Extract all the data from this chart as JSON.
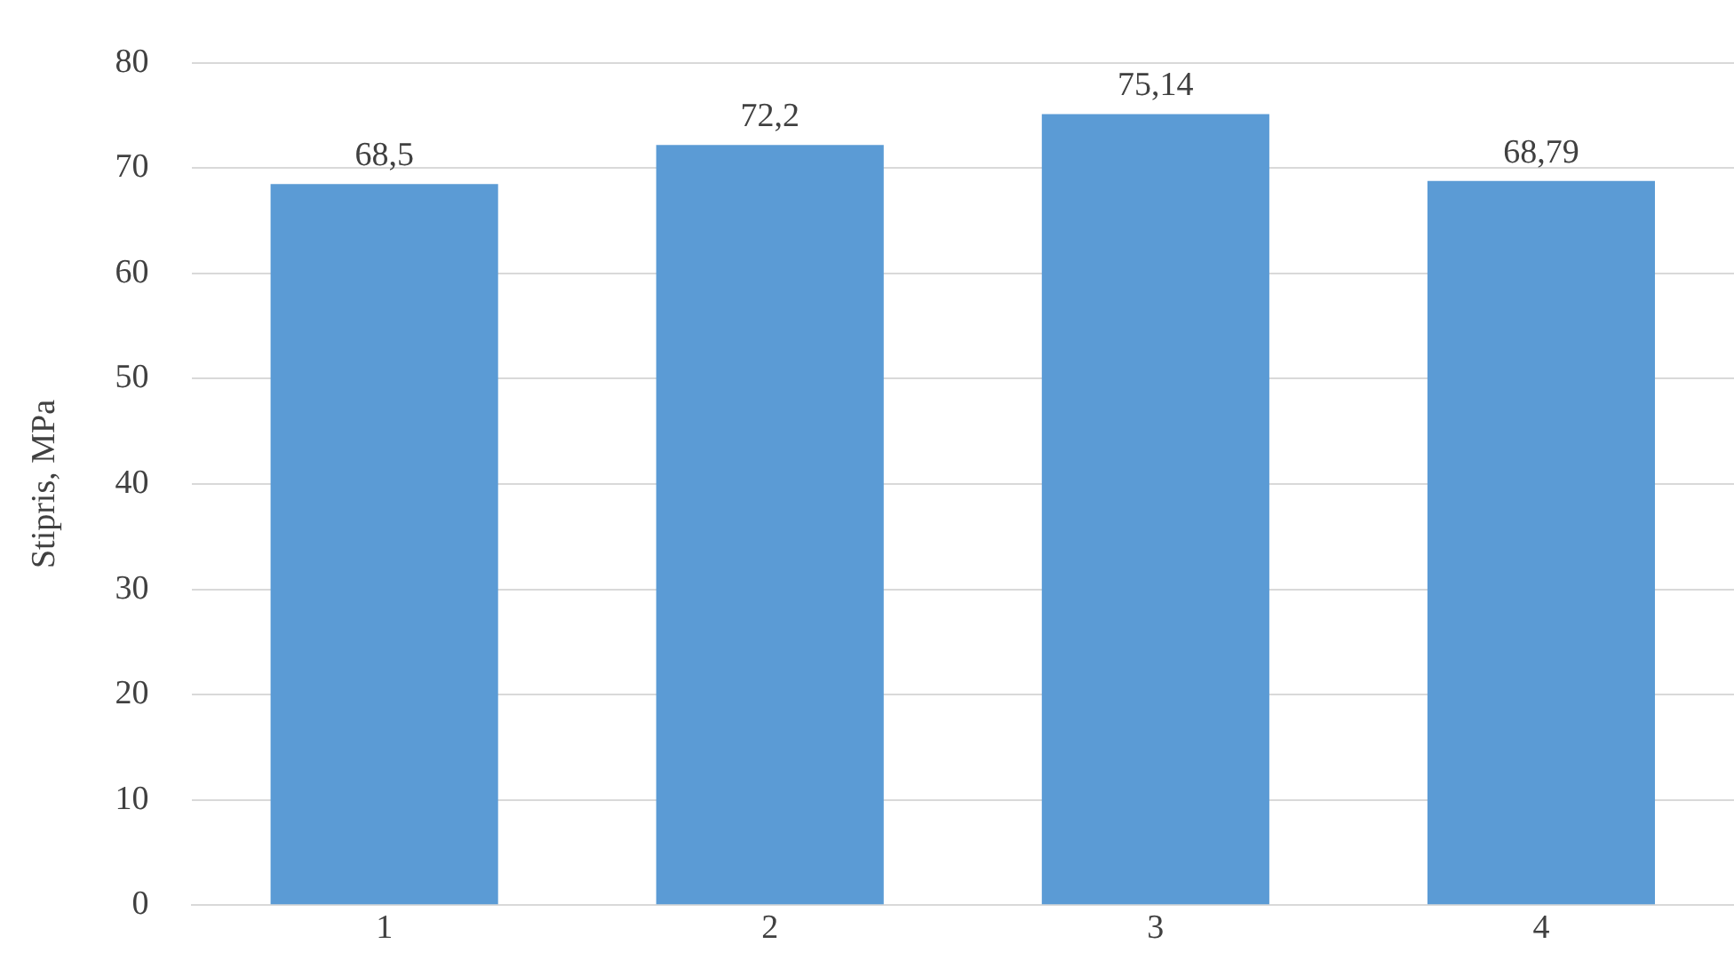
{
  "chart_data": {
    "type": "bar",
    "ylabel": "Stipris, MPa",
    "categories": [
      "1",
      "2",
      "3",
      "4"
    ],
    "values": [
      68.5,
      72.2,
      75.14,
      68.79
    ],
    "value_labels": [
      "68,5",
      "72,2",
      "75,14",
      "68,79"
    ],
    "color": "#5b9bd5",
    "ylim": [
      0,
      80
    ],
    "yticks": [
      0,
      10,
      20,
      30,
      40,
      50,
      60,
      70,
      80
    ],
    "grid": "y",
    "legend": false
  }
}
